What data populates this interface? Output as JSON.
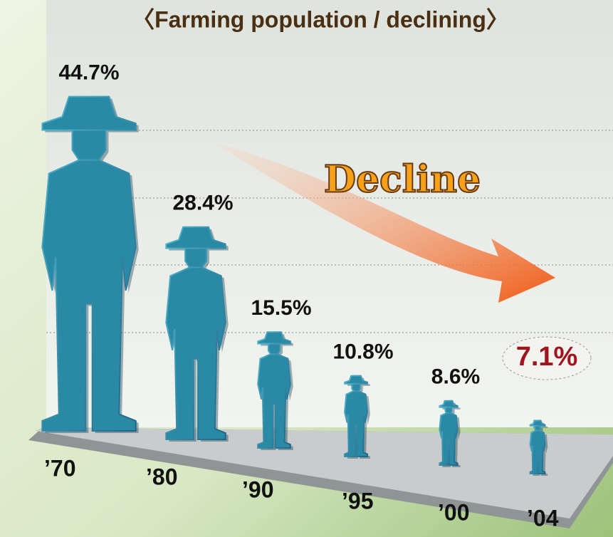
{
  "chart_data": {
    "type": "pictograph",
    "title": "〈Farming population / declining〉",
    "annotation": "Decline",
    "categories": [
      "’70",
      "’80",
      "’90",
      "’95",
      "’00",
      "’04"
    ],
    "values": [
      44.7,
      28.4,
      15.5,
      10.8,
      8.6,
      7.1
    ],
    "value_labels": [
      "44.7%",
      "28.4%",
      "15.5%",
      "10.8%",
      "8.6%",
      "7.1%"
    ],
    "color": "#2a8aa6"
  }
}
